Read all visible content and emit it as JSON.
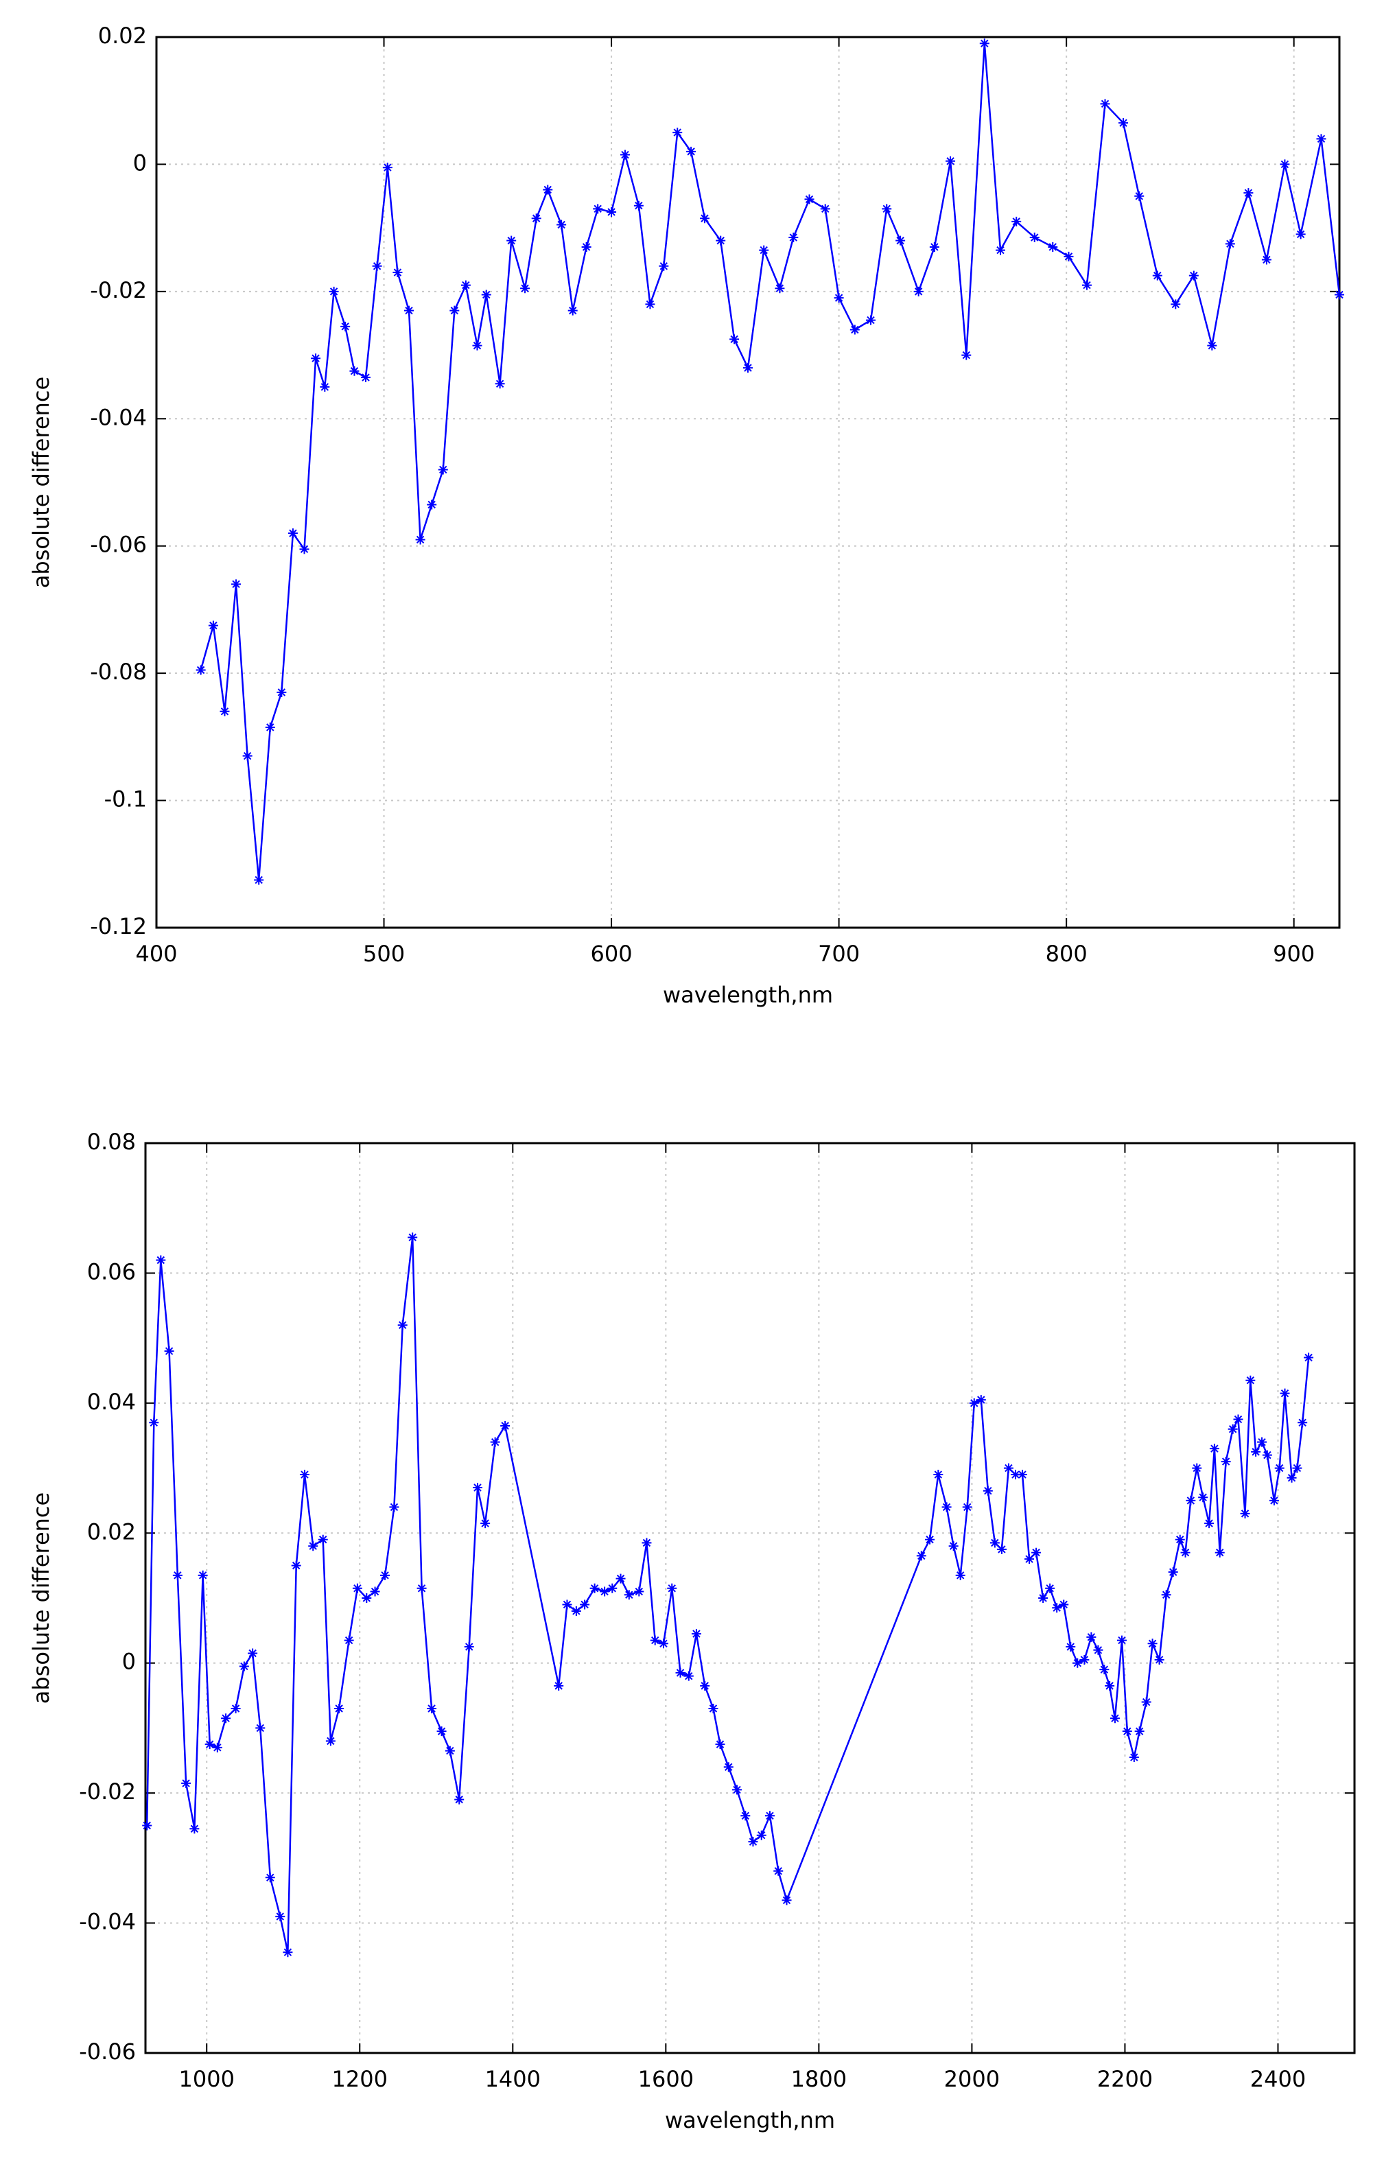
{
  "chart_data": [
    {
      "type": "line",
      "xlabel": "wavelength,nm",
      "ylabel": "absolute difference",
      "xlim": [
        400,
        920
      ],
      "xticks": [
        400,
        500,
        600,
        700,
        800,
        900
      ],
      "ylim": [
        -0.12,
        0.02
      ],
      "yticks": [
        -0.12,
        -0.1,
        -0.08,
        -0.06,
        -0.04,
        -0.02,
        0,
        0.02
      ],
      "grid": true,
      "color": "#0000ff",
      "x": [
        419.5,
        425,
        430,
        435,
        440,
        445,
        450,
        455,
        460,
        465,
        470,
        474,
        478,
        483,
        487,
        492,
        497,
        501.6,
        506,
        511,
        516,
        521,
        526,
        531,
        536,
        541,
        545,
        551,
        556,
        562,
        567,
        572,
        578,
        583,
        589,
        594,
        600,
        606,
        612,
        617,
        623,
        629,
        635,
        641,
        648,
        654,
        660,
        667,
        674,
        680,
        687,
        694,
        700,
        707,
        714,
        721,
        727,
        735,
        742,
        749,
        756,
        764,
        771,
        778,
        786,
        794,
        801,
        809,
        817,
        825,
        832,
        840,
        848,
        856,
        864,
        872,
        880,
        888,
        896,
        903,
        912,
        920
      ],
      "values": [
        -0.0795,
        -0.0725,
        -0.086,
        -0.066,
        -0.093,
        -0.1125,
        -0.0885,
        -0.083,
        -0.058,
        -0.0605,
        -0.0305,
        -0.035,
        -0.02,
        -0.0255,
        -0.0325,
        -0.0335,
        -0.016,
        -0.0005,
        -0.017,
        -0.023,
        -0.059,
        -0.0535,
        -0.048,
        -0.023,
        -0.019,
        -0.0285,
        -0.0205,
        -0.0345,
        -0.012,
        -0.0195,
        -0.0085,
        -0.004,
        -0.0095,
        -0.023,
        -0.013,
        -0.007,
        -0.0075,
        0.0015,
        -0.0065,
        -0.022,
        -0.016,
        0.005,
        0.002,
        -0.0085,
        -0.012,
        -0.0275,
        -0.032,
        -0.0135,
        -0.0195,
        -0.0115,
        -0.0055,
        -0.007,
        -0.021,
        -0.026,
        -0.0245,
        -0.007,
        -0.012,
        -0.02,
        -0.013,
        0.0005,
        -0.03,
        0.019,
        -0.0135,
        -0.009,
        -0.0115,
        -0.013,
        -0.0145,
        -0.019,
        0.0095,
        0.0065,
        -0.005,
        -0.0175,
        -0.022,
        -0.0175,
        -0.0285,
        -0.0125,
        -0.0045,
        -0.015,
        0,
        -0.011,
        0.004,
        -0.0205
      ]
    },
    {
      "type": "line",
      "xlabel": "wavelength,nm",
      "ylabel": "absolute difference",
      "xlim": [
        920,
        2500
      ],
      "xticks": [
        1000,
        1200,
        1400,
        1600,
        1800,
        2000,
        2200,
        2400
      ],
      "ylim": [
        -0.06,
        0.08
      ],
      "yticks": [
        -0.06,
        -0.04,
        -0.02,
        0,
        0.02,
        0.04,
        0.06,
        0.08
      ],
      "grid": true,
      "color": "#0000ff",
      "x": [
        922,
        931,
        940,
        951,
        962,
        973,
        984,
        995,
        1004,
        1014,
        1025,
        1038,
        1049,
        1060,
        1070,
        1083,
        1096,
        1106,
        1117,
        1128,
        1139,
        1152,
        1162,
        1173,
        1186,
        1197,
        1209,
        1220,
        1233,
        1245,
        1256,
        1269,
        1281,
        1294,
        1307,
        1318,
        1330,
        1343,
        1354,
        1364,
        1377,
        1390,
        1460,
        1471,
        1483,
        1494,
        1507,
        1520,
        1530,
        1541,
        1552,
        1565,
        1575,
        1586,
        1597,
        1608,
        1619,
        1630,
        1640,
        1651,
        1662,
        1671,
        1682,
        1693,
        1704,
        1714,
        1725,
        1736,
        1747,
        1758,
        1934,
        1945,
        1956,
        1967,
        1976,
        1985,
        1994,
        2003,
        2012,
        2021,
        2030,
        2039,
        2048,
        2057,
        2066,
        2075,
        2084,
        2093,
        2102,
        2111,
        2120,
        2129,
        2138,
        2147,
        2156,
        2165,
        2173,
        2180,
        2187,
        2196,
        2203,
        2212,
        2219,
        2228,
        2236,
        2245,
        2254,
        2263,
        2272,
        2279,
        2286,
        2294,
        2302,
        2310,
        2317,
        2324,
        2332,
        2341,
        2348,
        2357,
        2364,
        2371,
        2379,
        2386,
        2395,
        2402,
        2409,
        2418,
        2425,
        2432,
        2440
      ],
      "values": [
        -0.025,
        0.037,
        0.062,
        0.048,
        0.0135,
        -0.0185,
        -0.0255,
        0.0135,
        -0.0125,
        -0.013,
        -0.0085,
        -0.007,
        -0.0005,
        0.0015,
        -0.01,
        -0.033,
        -0.039,
        -0.0445,
        0.015,
        0.029,
        0.018,
        0.019,
        -0.012,
        -0.007,
        0.0035,
        0.0115,
        0.01,
        0.011,
        0.0135,
        0.024,
        0.052,
        0.0655,
        0.0115,
        -0.007,
        -0.0105,
        -0.0135,
        -0.021,
        0.0025,
        0.027,
        0.0215,
        0.034,
        0.0365,
        -0.0035,
        0.009,
        0.008,
        0.009,
        0.0115,
        0.011,
        0.0115,
        0.013,
        0.0105,
        0.011,
        0.0185,
        0.0035,
        0.003,
        0.0115,
        -0.0015,
        -0.002,
        0.0045,
        -0.0035,
        -0.007,
        -0.0125,
        -0.016,
        -0.0195,
        -0.0235,
        -0.0275,
        -0.0265,
        -0.0235,
        -0.032,
        -0.0365,
        0.0165,
        0.019,
        0.029,
        0.024,
        0.018,
        0.0135,
        0.024,
        0.04,
        0.0405,
        0.0265,
        0.0185,
        0.0175,
        0.03,
        0.029,
        0.029,
        0.016,
        0.017,
        0.01,
        0.0115,
        0.0085,
        0.009,
        0.0025,
        0,
        0.0005,
        0.004,
        0.002,
        -0.001,
        -0.0035,
        -0.0085,
        0.0035,
        -0.0105,
        -0.0145,
        -0.0105,
        -0.006,
        0.003,
        0.0005,
        0.0105,
        0.014,
        0.019,
        0.017,
        0.025,
        0.03,
        0.0255,
        0.0215,
        0.033,
        0.017,
        0.031,
        0.036,
        0.0375,
        0.023,
        0.0435,
        0.0325,
        0.034,
        0.032,
        0.025,
        0.03,
        0.0415,
        0.0285,
        0.03,
        0.037,
        0.047
      ]
    }
  ]
}
